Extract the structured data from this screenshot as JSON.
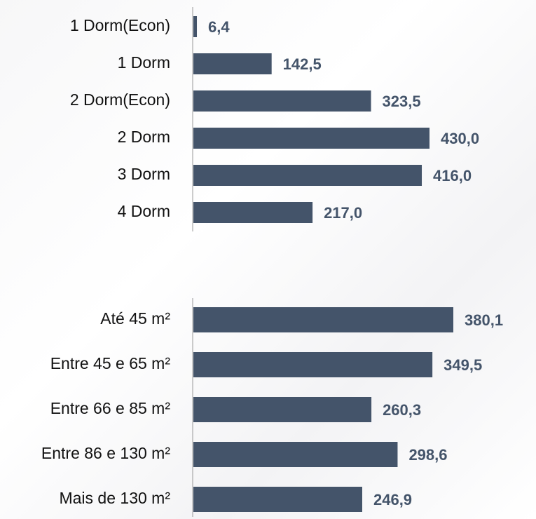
{
  "chart_data": [
    {
      "type": "bar",
      "orientation": "horizontal",
      "color": "#44546a",
      "categories": [
        "1 Dorm(Econ)",
        "1 Dorm",
        "2 Dorm(Econ)",
        "2 Dorm",
        "3 Dorm",
        "4 Dorm"
      ],
      "values": [
        6.4,
        142.5,
        323.5,
        430.0,
        416.0,
        217.0
      ],
      "value_labels": [
        "6,4",
        "142,5",
        "323,5",
        "430,0",
        "416,0",
        "217,0"
      ]
    },
    {
      "type": "bar",
      "orientation": "horizontal",
      "color": "#44546a",
      "categories": [
        "Até 45 m²",
        "Entre 45 e 65 m²",
        "Entre 66 e 85 m²",
        "Entre 86 e 130 m²",
        "Mais de 130 m²"
      ],
      "values": [
        380.1,
        349.5,
        260.3,
        298.6,
        246.9
      ],
      "value_labels": [
        "380,1",
        "349,5",
        "260,3",
        "298,6",
        "246,9"
      ]
    }
  ]
}
